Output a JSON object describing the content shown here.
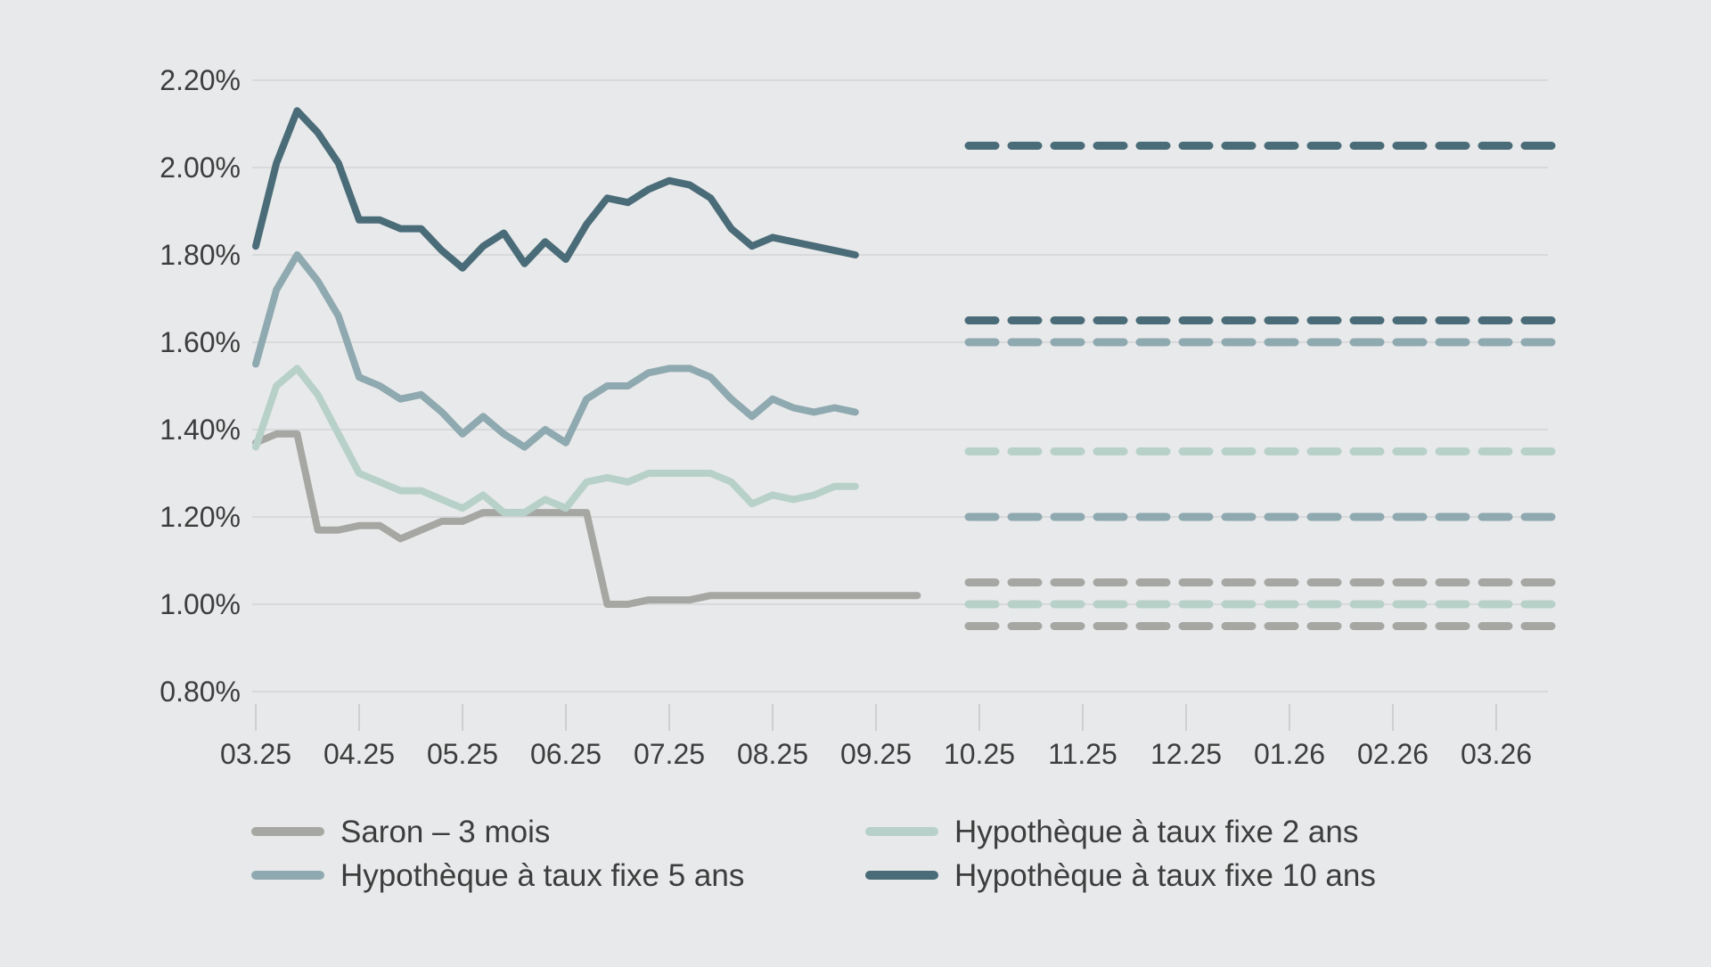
{
  "chart_data": {
    "type": "line",
    "title": "",
    "xlabel": "",
    "ylabel": "",
    "grid": true,
    "legend_position": "bottom",
    "x_tick_labels": [
      "03.25",
      "04.25",
      "05.25",
      "06.25",
      "07.25",
      "08.25",
      "09.25",
      "10.25",
      "11.25",
      "12.25",
      "01.26",
      "02.26",
      "03.26"
    ],
    "x_range": [
      0,
      12.5
    ],
    "y_tick_labels": [
      "0.80%",
      "1.00%",
      "1.20%",
      "1.40%",
      "1.60%",
      "1.80%",
      "2.00%",
      "2.20%"
    ],
    "y_ticks": [
      0.8,
      1.0,
      1.2,
      1.4,
      1.6,
      1.8,
      2.0,
      2.2
    ],
    "ylim": [
      0.8,
      2.2
    ],
    "x_step": 0.2,
    "series": [
      {
        "name": "Saron – 3 mois",
        "color": "#a6a6a3",
        "values": [
          1.37,
          1.39,
          1.39,
          1.17,
          1.17,
          1.18,
          1.18,
          1.15,
          1.17,
          1.19,
          1.19,
          1.21,
          1.21,
          1.21,
          1.21,
          1.21,
          1.21,
          1.0,
          1.0,
          1.01,
          1.01,
          1.01,
          1.02,
          1.02,
          1.02,
          1.02,
          1.02,
          1.02,
          1.02,
          1.02,
          1.02,
          1.02,
          1.02
        ],
        "forecasts": [
          1.05,
          0.95
        ]
      },
      {
        "name": "Hypothèque à taux fixe 2 ans",
        "color": "#b7d1c9",
        "values": [
          1.36,
          1.5,
          1.54,
          1.48,
          1.39,
          1.3,
          1.28,
          1.26,
          1.26,
          1.24,
          1.22,
          1.25,
          1.21,
          1.21,
          1.24,
          1.22,
          1.28,
          1.29,
          1.28,
          1.3,
          1.3,
          1.3,
          1.3,
          1.28,
          1.23,
          1.25,
          1.24,
          1.25,
          1.27,
          1.27
        ],
        "forecasts": [
          1.35,
          1.0
        ]
      },
      {
        "name": "Hypothèque à taux fixe 5 ans",
        "color": "#8fa9b0",
        "values": [
          1.55,
          1.72,
          1.8,
          1.74,
          1.66,
          1.52,
          1.5,
          1.47,
          1.48,
          1.44,
          1.39,
          1.43,
          1.39,
          1.36,
          1.4,
          1.37,
          1.47,
          1.5,
          1.5,
          1.53,
          1.54,
          1.54,
          1.52,
          1.47,
          1.43,
          1.47,
          1.45,
          1.44,
          1.45,
          1.44
        ],
        "forecasts": [
          1.6,
          1.2
        ]
      },
      {
        "name": "Hypothèque à taux fixe 10 ans",
        "color": "#4a6c78",
        "values": [
          1.82,
          2.01,
          2.13,
          2.08,
          2.01,
          1.88,
          1.88,
          1.86,
          1.86,
          1.81,
          1.77,
          1.82,
          1.85,
          1.78,
          1.83,
          1.79,
          1.87,
          1.93,
          1.92,
          1.95,
          1.97,
          1.96,
          1.93,
          1.86,
          1.82,
          1.84,
          1.83,
          1.82,
          1.81,
          1.8
        ],
        "forecasts": [
          2.05,
          1.65
        ]
      }
    ],
    "forecast_x_range": [
      7.0,
      12.4
    ]
  },
  "legend": {
    "items": [
      {
        "label": "Saron – 3 mois",
        "color": "#a6a6a3"
      },
      {
        "label": "Hypothèque à taux fixe 2 ans",
        "color": "#b7d1c9"
      },
      {
        "label": "Hypothèque à taux fixe 5 ans",
        "color": "#8fa9b0"
      },
      {
        "label": "Hypothèque à taux fixe 10 ans",
        "color": "#4a6c78"
      }
    ]
  }
}
